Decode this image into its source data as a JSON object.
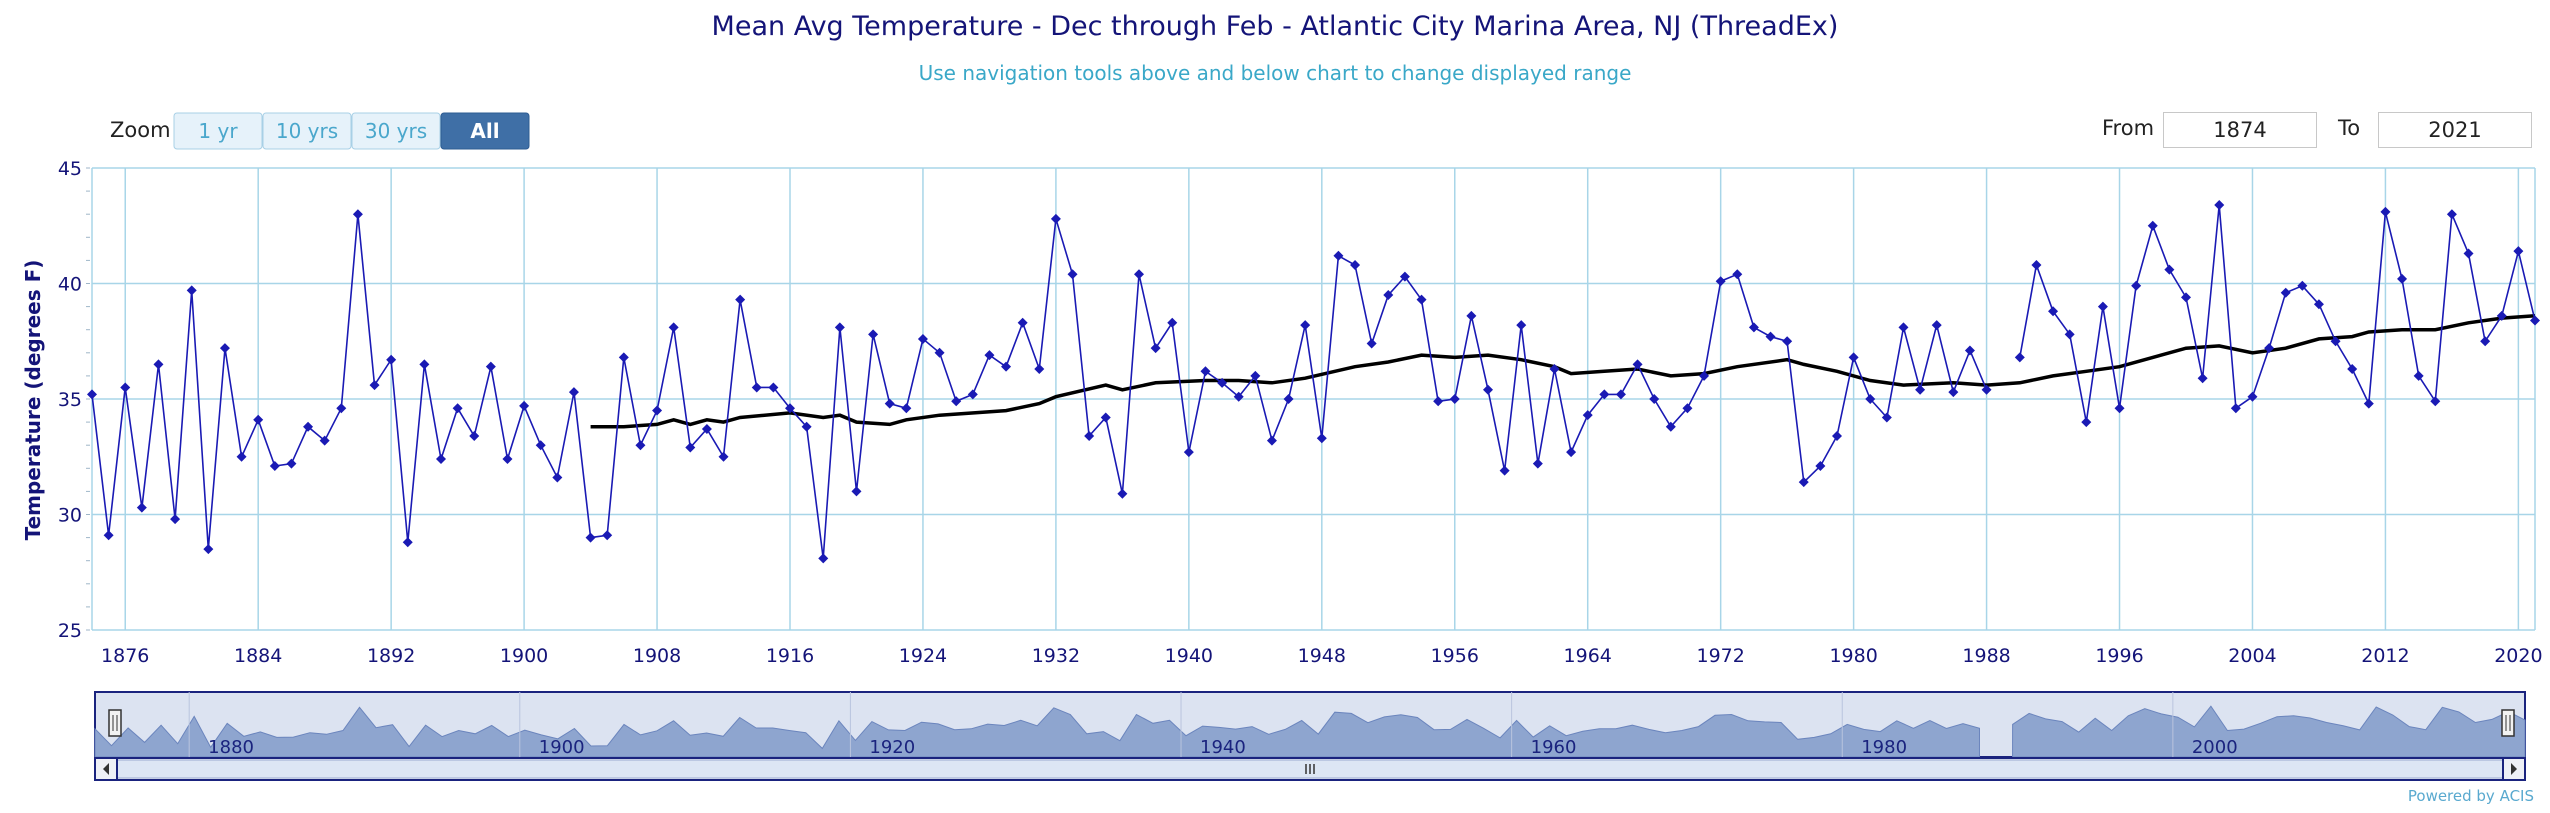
{
  "chart_data": {
    "type": "line",
    "title": "Mean Avg Temperature - Dec through Feb - Atlantic City Marina Area, NJ (ThreadEx)",
    "subtitle": "Use navigation tools above and below chart to change displayed range",
    "ylabel": "Temperature (degrees F)",
    "xlabel": "",
    "ylim": [
      25,
      45
    ],
    "xlim": [
      1874,
      2021
    ],
    "yticks": [
      25,
      30,
      35,
      40,
      45
    ],
    "xticks": [
      1876,
      1884,
      1892,
      1900,
      1908,
      1916,
      1924,
      1932,
      1940,
      1948,
      1956,
      1964,
      1972,
      1980,
      1988,
      1996,
      2004,
      2012,
      2020
    ],
    "grid": true,
    "series": [
      {
        "values": [
          [
            1874,
            35.2
          ],
          [
            1875,
            29.1
          ],
          [
            1876,
            35.5
          ],
          [
            1877,
            30.3
          ],
          [
            1878,
            36.5
          ],
          [
            1879,
            29.8
          ],
          [
            1880,
            39.7
          ],
          [
            1881,
            28.5
          ],
          [
            1882,
            37.2
          ],
          [
            1883,
            32.5
          ],
          [
            1884,
            34.1
          ],
          [
            1885,
            32.1
          ],
          [
            1886,
            32.2
          ],
          [
            1887,
            33.8
          ],
          [
            1888,
            33.2
          ],
          [
            1889,
            34.6
          ],
          [
            1890,
            43.0
          ],
          [
            1891,
            35.6
          ],
          [
            1892,
            36.7
          ],
          [
            1893,
            28.8
          ],
          [
            1894,
            36.5
          ],
          [
            1895,
            32.4
          ],
          [
            1896,
            34.6
          ],
          [
            1897,
            33.4
          ],
          [
            1898,
            36.4
          ],
          [
            1899,
            32.4
          ],
          [
            1900,
            34.7
          ],
          [
            1901,
            33.0
          ],
          [
            1902,
            31.6
          ],
          [
            1903,
            35.3
          ],
          [
            1904,
            29.0
          ],
          [
            1905,
            29.1
          ],
          [
            1906,
            36.8
          ],
          [
            1907,
            33.0
          ],
          [
            1908,
            34.5
          ],
          [
            1909,
            38.1
          ],
          [
            1910,
            32.9
          ],
          [
            1911,
            33.7
          ],
          [
            1912,
            32.5
          ],
          [
            1913,
            39.3
          ],
          [
            1914,
            35.5
          ],
          [
            1915,
            35.5
          ],
          [
            1916,
            34.6
          ],
          [
            1917,
            33.8
          ],
          [
            1918,
            28.1
          ],
          [
            1919,
            38.1
          ],
          [
            1920,
            31.0
          ],
          [
            1921,
            37.8
          ],
          [
            1922,
            34.8
          ],
          [
            1923,
            34.6
          ],
          [
            1924,
            37.6
          ],
          [
            1925,
            37.0
          ],
          [
            1926,
            34.9
          ],
          [
            1927,
            35.2
          ],
          [
            1928,
            36.9
          ],
          [
            1929,
            36.4
          ],
          [
            1930,
            38.3
          ],
          [
            1931,
            36.3
          ],
          [
            1932,
            42.8
          ],
          [
            1933,
            40.4
          ],
          [
            1934,
            33.4
          ],
          [
            1935,
            34.2
          ],
          [
            1936,
            30.9
          ],
          [
            1937,
            40.4
          ],
          [
            1938,
            37.2
          ],
          [
            1939,
            38.3
          ],
          [
            1940,
            32.7
          ],
          [
            1941,
            36.2
          ],
          [
            1942,
            35.7
          ],
          [
            1943,
            35.1
          ],
          [
            1944,
            36.0
          ],
          [
            1945,
            33.2
          ],
          [
            1946,
            35.0
          ],
          [
            1947,
            38.2
          ],
          [
            1948,
            33.3
          ],
          [
            1949,
            41.2
          ],
          [
            1950,
            40.8
          ],
          [
            1951,
            37.4
          ],
          [
            1952,
            39.5
          ],
          [
            1953,
            40.3
          ],
          [
            1954,
            39.3
          ],
          [
            1955,
            34.9
          ],
          [
            1956,
            35.0
          ],
          [
            1957,
            38.6
          ],
          [
            1958,
            35.4
          ],
          [
            1959,
            31.9
          ],
          [
            1960,
            38.2
          ],
          [
            1961,
            32.2
          ],
          [
            1962,
            36.3
          ],
          [
            1963,
            32.7
          ],
          [
            1964,
            34.3
          ],
          [
            1965,
            35.2
          ],
          [
            1966,
            35.2
          ],
          [
            1967,
            36.5
          ],
          [
            1968,
            35.0
          ],
          [
            1969,
            33.8
          ],
          [
            1970,
            34.6
          ],
          [
            1971,
            36.0
          ],
          [
            1972,
            40.1
          ],
          [
            1973,
            40.4
          ],
          [
            1974,
            38.1
          ],
          [
            1975,
            37.7
          ],
          [
            1976,
            37.5
          ],
          [
            1977,
            31.4
          ],
          [
            1978,
            32.1
          ],
          [
            1979,
            33.4
          ],
          [
            1980,
            36.8
          ],
          [
            1981,
            35.0
          ],
          [
            1982,
            34.2
          ],
          [
            1983,
            38.1
          ],
          [
            1984,
            35.4
          ],
          [
            1985,
            38.2
          ],
          [
            1986,
            35.3
          ],
          [
            1987,
            37.1
          ],
          [
            1988,
            35.4
          ],
          [
            1989,
            null
          ],
          [
            1990,
            36.8
          ],
          [
            1991,
            40.8
          ],
          [
            1992,
            38.8
          ],
          [
            1993,
            37.8
          ],
          [
            1994,
            34.0
          ],
          [
            1995,
            39.0
          ],
          [
            1996,
            34.6
          ],
          [
            1997,
            39.9
          ],
          [
            1998,
            42.5
          ],
          [
            1999,
            40.6
          ],
          [
            2000,
            39.4
          ],
          [
            2001,
            35.9
          ],
          [
            2002,
            43.4
          ],
          [
            2003,
            34.6
          ],
          [
            2004,
            35.1
          ],
          [
            2005,
            37.2
          ],
          [
            2006,
            39.6
          ],
          [
            2007,
            39.9
          ],
          [
            2008,
            39.1
          ],
          [
            2009,
            37.5
          ],
          [
            2010,
            36.3
          ],
          [
            2011,
            34.8
          ],
          [
            2012,
            43.1
          ],
          [
            2013,
            40.2
          ],
          [
            2014,
            36.0
          ],
          [
            2015,
            34.9
          ],
          [
            2016,
            43.0
          ],
          [
            2017,
            41.3
          ],
          [
            2018,
            37.5
          ],
          [
            2019,
            38.6
          ],
          [
            2020,
            41.4
          ],
          [
            2021,
            38.4
          ]
        ]
      },
      {
        "values": [
          [
            1904,
            33.8
          ],
          [
            1906,
            33.8
          ],
          [
            1908,
            33.9
          ],
          [
            1909,
            34.1
          ],
          [
            1910,
            33.9
          ],
          [
            1911,
            34.1
          ],
          [
            1912,
            34.0
          ],
          [
            1913,
            34.2
          ],
          [
            1916,
            34.4
          ],
          [
            1918,
            34.2
          ],
          [
            1919,
            34.3
          ],
          [
            1920,
            34.0
          ],
          [
            1922,
            33.9
          ],
          [
            1923,
            34.1
          ],
          [
            1925,
            34.3
          ],
          [
            1929,
            34.5
          ],
          [
            1931,
            34.8
          ],
          [
            1932,
            35.1
          ],
          [
            1935,
            35.6
          ],
          [
            1936,
            35.4
          ],
          [
            1938,
            35.7
          ],
          [
            1941,
            35.8
          ],
          [
            1943,
            35.8
          ],
          [
            1945,
            35.7
          ],
          [
            1947,
            35.9
          ],
          [
            1950,
            36.4
          ],
          [
            1952,
            36.6
          ],
          [
            1954,
            36.9
          ],
          [
            1956,
            36.8
          ],
          [
            1958,
            36.9
          ],
          [
            1960,
            36.7
          ],
          [
            1962,
            36.4
          ],
          [
            1963,
            36.1
          ],
          [
            1965,
            36.2
          ],
          [
            1967,
            36.3
          ],
          [
            1969,
            36.0
          ],
          [
            1971,
            36.1
          ],
          [
            1973,
            36.4
          ],
          [
            1976,
            36.7
          ],
          [
            1977,
            36.5
          ],
          [
            1979,
            36.2
          ],
          [
            1981,
            35.8
          ],
          [
            1983,
            35.6
          ],
          [
            1986,
            35.7
          ],
          [
            1988,
            35.6
          ],
          [
            1990,
            35.7
          ],
          [
            1992,
            36.0
          ],
          [
            1994,
            36.2
          ],
          [
            1996,
            36.4
          ],
          [
            1998,
            36.8
          ],
          [
            2000,
            37.2
          ],
          [
            2002,
            37.3
          ],
          [
            2004,
            37.0
          ],
          [
            2006,
            37.2
          ],
          [
            2008,
            37.6
          ],
          [
            2010,
            37.7
          ],
          [
            2011,
            37.9
          ],
          [
            2013,
            38.0
          ],
          [
            2015,
            38.0
          ],
          [
            2017,
            38.3
          ],
          [
            2019,
            38.5
          ],
          [
            2021,
            38.6
          ]
        ]
      }
    ],
    "navigator": {
      "xticks": [
        1880,
        1900,
        1920,
        1940,
        1960,
        1980,
        2000
      ]
    }
  },
  "controls": {
    "zoom_label": "Zoom",
    "buttons": [
      "1 yr",
      "10 yrs",
      "30 yrs",
      "All"
    ],
    "selected_button": "All",
    "from_label": "From",
    "from_value": "1874",
    "to_label": "To",
    "to_value": "2021"
  },
  "credit": "Powered by ACIS",
  "colors": {
    "series": "#1a1ab4",
    "average": "#000000",
    "title": "#141478",
    "subtitle": "#3aa8c8",
    "grid": "#a8d5e8",
    "navigator_fill": "#8ea5cf",
    "button_selected": "#3f6fa6"
  }
}
